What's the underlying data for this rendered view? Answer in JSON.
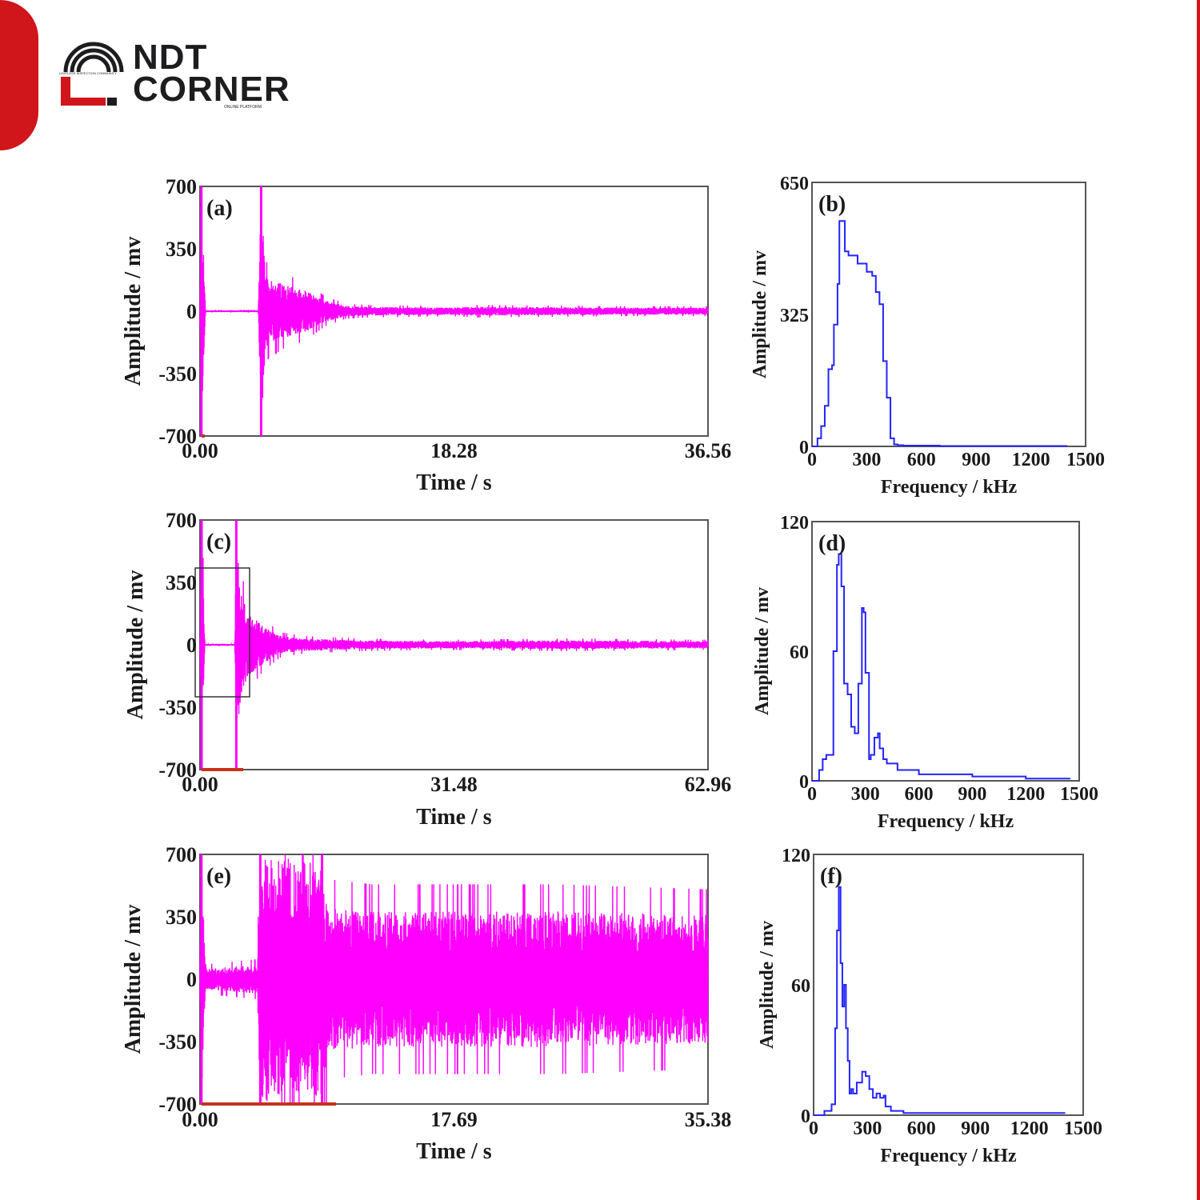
{
  "brand": {
    "name_line1": "NDT",
    "name_line2": "CORNER",
    "tagline": "LIMITLESS INSPECTION COMMUNITY",
    "subline": "ONLINE PLATFORM",
    "colors": {
      "accent": "#d0161b",
      "text": "#1d1d1f"
    }
  },
  "colors": {
    "time_series": "#ff00ff",
    "spectrum": "#2424ff",
    "marker": "#c8311a"
  },
  "chart_data": [
    {
      "panel": "(a)",
      "type": "line",
      "xlabel": "Time / s",
      "ylabel": "Amplitude / mv",
      "xlim": [
        0,
        36.56
      ],
      "ylim": [
        -700,
        700
      ],
      "xticks": [
        "0.00",
        "18.28",
        "36.56"
      ],
      "yticks": [
        "700",
        "350",
        "0",
        "-350",
        "-700"
      ],
      "series": [
        {
          "envelope_t": [
            0,
            0.1,
            0.4,
            4.2,
            4.4,
            4.7,
            6,
            7.5,
            9,
            10.5,
            12,
            18,
            20,
            30,
            36.56
          ],
          "envelope_amp": [
            5,
            650,
            5,
            5,
            700,
            200,
            150,
            120,
            60,
            30,
            25,
            20,
            25,
            20,
            20
          ]
        }
      ]
    },
    {
      "panel": "(b)",
      "type": "line",
      "xlabel": "Frequency  / kHz",
      "ylabel": "Amplitude / mv",
      "xlim": [
        0,
        1500
      ],
      "ylim": [
        0,
        650
      ],
      "xticks": [
        "0",
        "300",
        "600",
        "900",
        "1200",
        "1500"
      ],
      "yticks": [
        "650",
        "325",
        "0"
      ],
      "series": [
        {
          "x": [
            0,
            30,
            50,
            70,
            90,
            110,
            120,
            140,
            150,
            170,
            180,
            200,
            250,
            300,
            330,
            350,
            370,
            390,
            410,
            430,
            450,
            470,
            500,
            700,
            1000,
            1300,
            1400
          ],
          "y": [
            0,
            20,
            50,
            100,
            190,
            200,
            300,
            400,
            555,
            555,
            480,
            470,
            450,
            430,
            420,
            380,
            350,
            210,
            120,
            20,
            5,
            3,
            2,
            1,
            1,
            1,
            1
          ]
        }
      ]
    },
    {
      "panel": "(c)",
      "type": "line",
      "xlabel": "Time / s",
      "ylabel": "Amplitude / mv",
      "xlim": [
        0,
        62.96
      ],
      "ylim": [
        -700,
        700
      ],
      "xticks": [
        "0.00",
        "31.48",
        "62.96"
      ],
      "yticks": [
        "700",
        "350",
        "0",
        "-350",
        "-700"
      ],
      "series": [
        {
          "envelope_t": [
            0,
            0.2,
            0.6,
            4.3,
            4.5,
            5,
            6,
            8,
            10,
            13,
            20,
            30,
            45,
            62.96
          ],
          "envelope_amp": [
            5,
            650,
            5,
            5,
            680,
            300,
            180,
            100,
            50,
            35,
            25,
            20,
            25,
            20
          ]
        }
      ]
    },
    {
      "panel": "(d)",
      "type": "line",
      "xlabel": "Frequency  / kHz",
      "ylabel": "Amplitude / mv",
      "xlim": [
        0,
        1500
      ],
      "ylim": [
        0,
        120
      ],
      "xticks": [
        "0",
        "300",
        "600",
        "900",
        "1200",
        "1500"
      ],
      "yticks": [
        "120",
        "60",
        "0"
      ],
      "series": [
        {
          "x": [
            0,
            40,
            60,
            80,
            100,
            120,
            140,
            150,
            165,
            180,
            200,
            220,
            240,
            260,
            280,
            290,
            300,
            320,
            330,
            350,
            370,
            380,
            400,
            420,
            480,
            600,
            900,
            1200,
            1450
          ],
          "y": [
            0,
            5,
            10,
            12,
            12,
            60,
            100,
            105,
            90,
            45,
            40,
            25,
            22,
            45,
            80,
            78,
            50,
            10,
            12,
            20,
            22,
            15,
            10,
            8,
            5,
            3,
            2,
            1,
            1
          ]
        }
      ]
    },
    {
      "panel": "(e)",
      "type": "line",
      "xlabel": "Time / s",
      "ylabel": "Amplitude / mv",
      "xlim": [
        0,
        35.38
      ],
      "ylim": [
        -700,
        700
      ],
      "xticks": [
        "0.00",
        "17.69",
        "35.38"
      ],
      "yticks": [
        "700",
        "350",
        "0",
        "-350",
        "-700"
      ],
      "series": [
        {
          "envelope_t": [
            0,
            0.1,
            0.4,
            4.0,
            4.2,
            8.5,
            9,
            12,
            18,
            25,
            30,
            35.38
          ],
          "envelope_amp": [
            60,
            650,
            60,
            80,
            700,
            650,
            400,
            380,
            380,
            380,
            370,
            360
          ]
        }
      ]
    },
    {
      "panel": "(f)",
      "type": "line",
      "xlabel": "Frequency  / kHz",
      "ylabel": "Amplitude / mv",
      "xlim": [
        0,
        1500
      ],
      "ylim": [
        0,
        120
      ],
      "xticks": [
        "0",
        "300",
        "600",
        "900",
        "1200",
        "1500"
      ],
      "yticks": [
        "120",
        "60",
        "0"
      ],
      "series": [
        {
          "x": [
            0,
            60,
            100,
            120,
            130,
            140,
            150,
            160,
            170,
            180,
            190,
            200,
            210,
            220,
            240,
            270,
            290,
            310,
            330,
            350,
            370,
            390,
            400,
            430,
            500,
            700,
            1000,
            1300,
            1400
          ],
          "y": [
            0,
            2,
            5,
            40,
            85,
            105,
            70,
            50,
            60,
            40,
            25,
            10,
            12,
            10,
            15,
            20,
            18,
            12,
            8,
            10,
            8,
            9,
            4,
            2,
            1,
            1,
            1,
            1,
            1
          ]
        }
      ]
    }
  ]
}
